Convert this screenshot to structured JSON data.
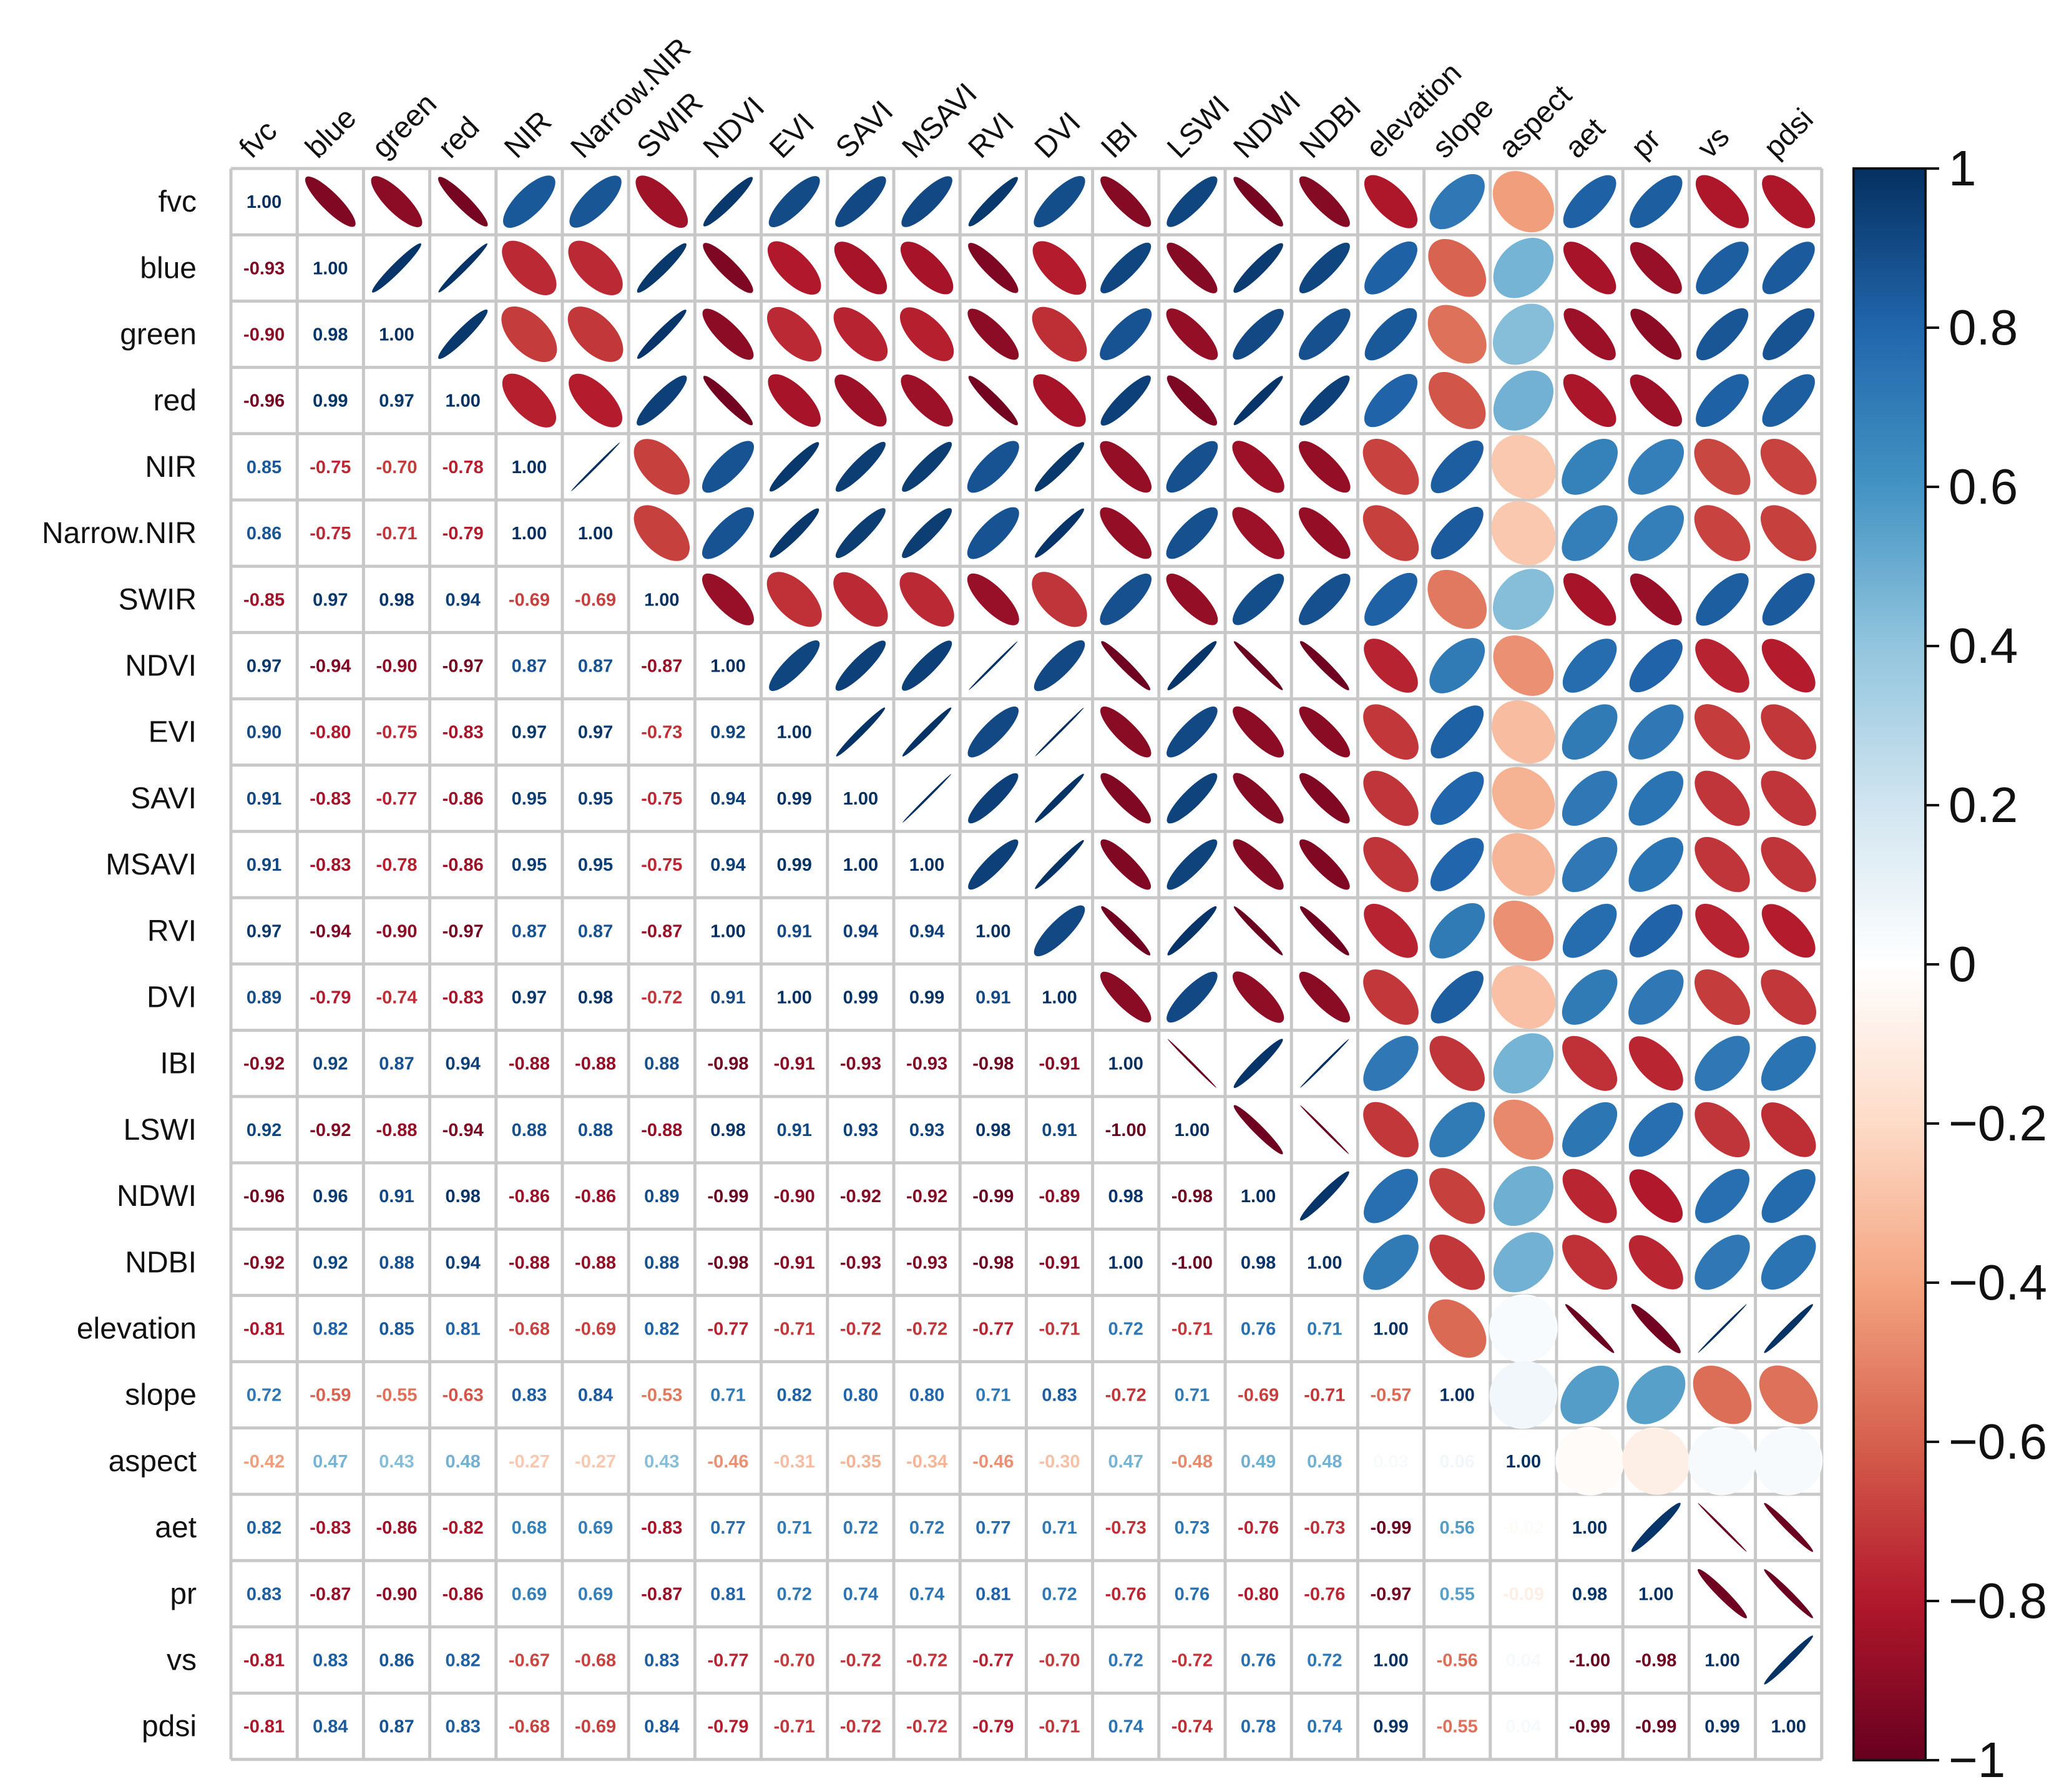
{
  "chart_data": {
    "type": "heatmap",
    "style": "ellipse-correlation-matrix",
    "variables": [
      "fvc",
      "blue",
      "green",
      "red",
      "NIR",
      "Narrow.NIR",
      "SWIR",
      "NDVI",
      "EVI",
      "SAVI",
      "MSAVI",
      "RVI",
      "DVI",
      "IBI",
      "LSWI",
      "NDWI",
      "NDBI",
      "elevation",
      "slope",
      "aspect",
      "aet",
      "pr",
      "vs",
      "pdsi"
    ],
    "lower_triangle": [
      [
        1.0
      ],
      [
        -0.93,
        1.0
      ],
      [
        -0.9,
        0.98,
        1.0
      ],
      [
        -0.96,
        0.99,
        0.97,
        1.0
      ],
      [
        0.85,
        -0.75,
        -0.7,
        -0.78,
        1.0
      ],
      [
        0.86,
        -0.75,
        -0.71,
        -0.79,
        1.0,
        1.0
      ],
      [
        -0.85,
        0.97,
        0.98,
        0.94,
        -0.69,
        -0.69,
        1.0
      ],
      [
        0.97,
        -0.94,
        -0.9,
        -0.97,
        0.87,
        0.87,
        -0.87,
        1.0
      ],
      [
        0.9,
        -0.8,
        -0.75,
        -0.83,
        0.97,
        0.97,
        -0.73,
        0.92,
        1.0
      ],
      [
        0.91,
        -0.83,
        -0.77,
        -0.86,
        0.95,
        0.95,
        -0.75,
        0.94,
        0.99,
        1.0
      ],
      [
        0.91,
        -0.83,
        -0.78,
        -0.86,
        0.95,
        0.95,
        -0.75,
        0.94,
        0.99,
        1.0,
        1.0
      ],
      [
        0.97,
        -0.94,
        -0.9,
        -0.97,
        0.87,
        0.87,
        -0.87,
        1.0,
        0.91,
        0.94,
        0.94,
        1.0
      ],
      [
        0.89,
        -0.79,
        -0.74,
        -0.83,
        0.97,
        0.98,
        -0.72,
        0.91,
        1.0,
        0.99,
        0.99,
        0.91,
        1.0
      ],
      [
        -0.92,
        0.92,
        0.87,
        0.94,
        -0.88,
        -0.88,
        0.88,
        -0.98,
        -0.91,
        -0.93,
        -0.93,
        -0.98,
        -0.91,
        1.0
      ],
      [
        0.92,
        -0.92,
        -0.88,
        -0.94,
        0.88,
        0.88,
        -0.88,
        0.98,
        0.91,
        0.93,
        0.93,
        0.98,
        0.91,
        -1.0,
        1.0
      ],
      [
        -0.96,
        0.96,
        0.91,
        0.98,
        -0.86,
        -0.86,
        0.89,
        -0.99,
        -0.9,
        -0.92,
        -0.92,
        -0.99,
        -0.89,
        0.98,
        -0.98,
        1.0
      ],
      [
        -0.92,
        0.92,
        0.88,
        0.94,
        -0.88,
        -0.88,
        0.88,
        -0.98,
        -0.91,
        -0.93,
        -0.93,
        -0.98,
        -0.91,
        1.0,
        -1.0,
        0.98,
        1.0
      ],
      [
        -0.81,
        0.82,
        0.85,
        0.81,
        -0.68,
        -0.69,
        0.82,
        -0.77,
        -0.71,
        -0.72,
        -0.72,
        -0.77,
        -0.71,
        0.72,
        -0.71,
        0.76,
        0.71,
        1.0
      ],
      [
        0.72,
        -0.59,
        -0.55,
        -0.63,
        0.83,
        0.84,
        -0.53,
        0.71,
        0.82,
        0.8,
        0.8,
        0.71,
        0.83,
        -0.72,
        0.71,
        -0.69,
        -0.71,
        -0.57,
        1.0
      ],
      [
        -0.42,
        0.47,
        0.43,
        0.48,
        -0.27,
        -0.27,
        0.43,
        -0.46,
        -0.31,
        -0.35,
        -0.34,
        -0.46,
        -0.3,
        0.47,
        -0.48,
        0.49,
        0.48,
        0.03,
        0.06,
        1.0
      ],
      [
        0.82,
        -0.83,
        -0.86,
        -0.82,
        0.68,
        0.69,
        -0.83,
        0.77,
        0.71,
        0.72,
        0.72,
        0.77,
        0.71,
        -0.73,
        0.73,
        -0.76,
        -0.73,
        -0.99,
        0.56,
        -0.02,
        1.0
      ],
      [
        0.83,
        -0.87,
        -0.9,
        -0.86,
        0.69,
        0.69,
        -0.87,
        0.81,
        0.72,
        0.74,
        0.74,
        0.81,
        0.72,
        -0.76,
        0.76,
        -0.8,
        -0.76,
        -0.97,
        0.55,
        -0.09,
        0.98,
        1.0
      ],
      [
        -0.81,
        0.83,
        0.86,
        0.82,
        -0.67,
        -0.68,
        0.83,
        -0.77,
        -0.7,
        -0.72,
        -0.72,
        -0.77,
        -0.7,
        0.72,
        -0.72,
        0.76,
        0.72,
        1.0,
        -0.56,
        0.04,
        -1.0,
        -0.98,
        1.0
      ],
      [
        -0.81,
        0.84,
        0.87,
        0.83,
        -0.68,
        -0.69,
        0.84,
        -0.79,
        -0.71,
        -0.72,
        -0.72,
        -0.79,
        -0.71,
        0.74,
        -0.74,
        0.78,
        0.74,
        0.99,
        -0.55,
        0.04,
        -0.99,
        -0.99,
        0.99,
        1.0
      ]
    ],
    "colorbar": {
      "ticks": [
        "1",
        "0.8",
        "0.6",
        "0.4",
        "0.2",
        "0",
        "−0.2",
        "−0.4",
        "−0.6",
        "−0.8",
        "−1"
      ],
      "range": [
        -1,
        1
      ]
    },
    "colors": {
      "negative_end": "#67001f",
      "positive_end": "#053061",
      "midpoint": "#ffffff",
      "grid": "#c8c8c8"
    }
  }
}
